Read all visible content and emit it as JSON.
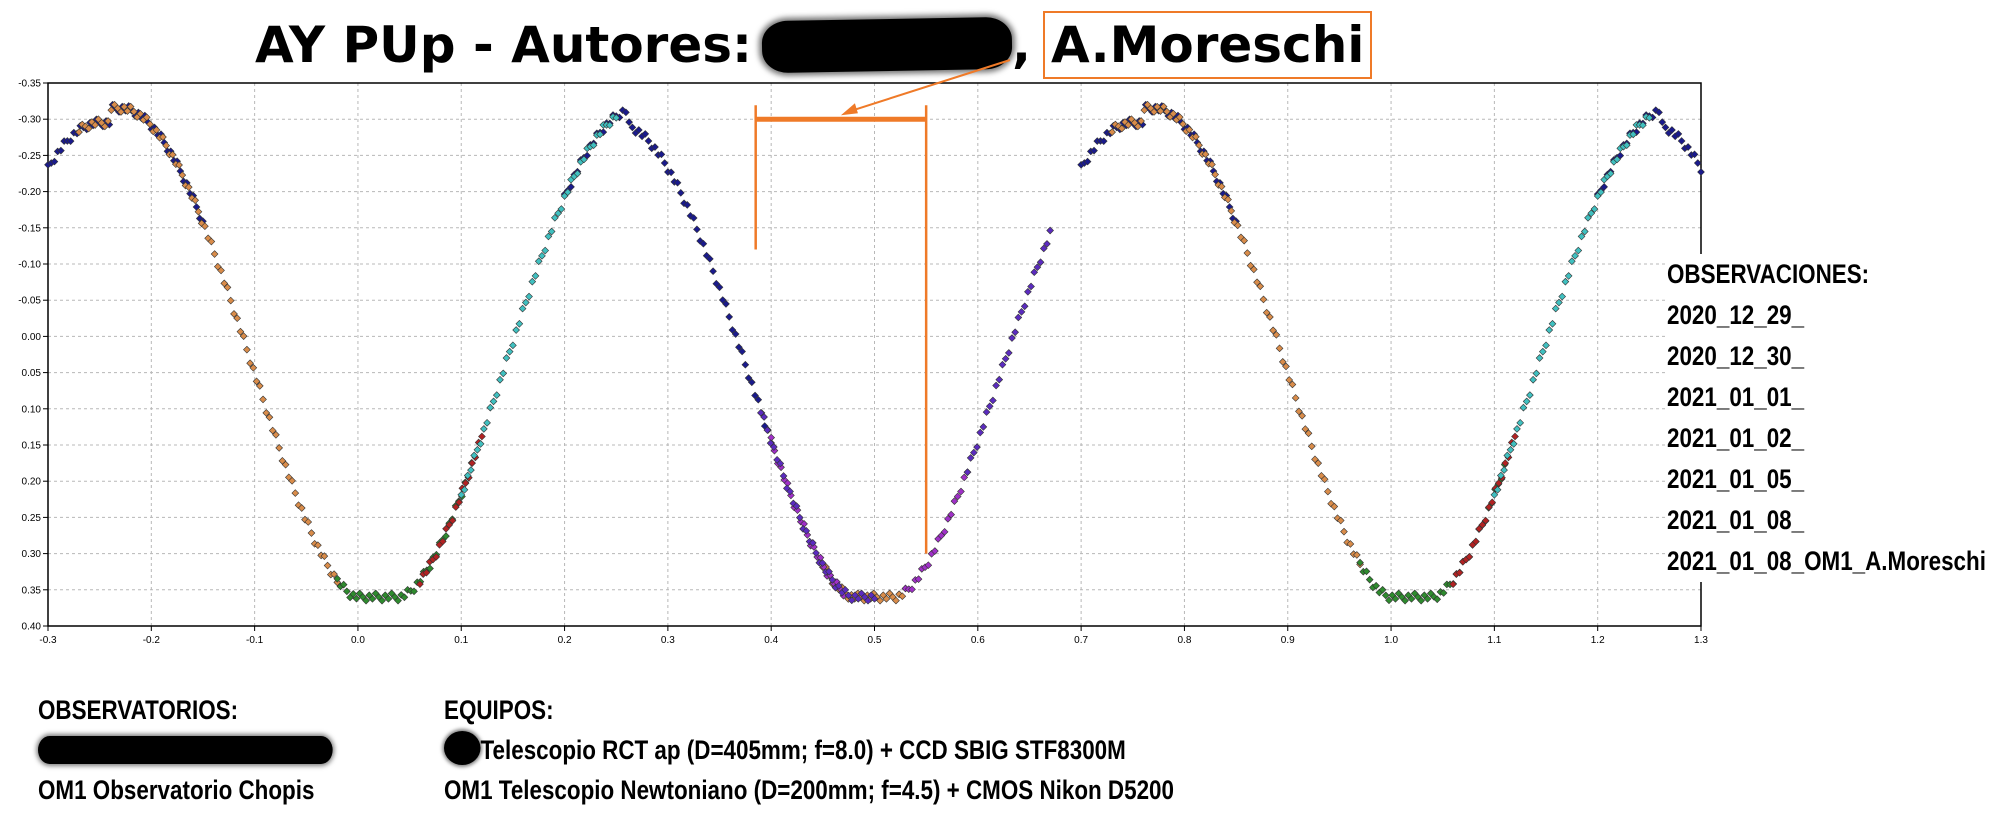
{
  "header": {
    "title_prefix": "AY PUp - Autores:",
    "title_separator": ",",
    "highlighted_author": "A.Moreschi",
    "highlight_color": "#ef7a28"
  },
  "chart_data": {
    "type": "scatter",
    "title": "",
    "xlabel": "",
    "ylabel": "",
    "xlim": [
      -0.3,
      1.3
    ],
    "ylim": [
      -0.35,
      0.4
    ],
    "y_inverted": true,
    "grid": true,
    "x_ticks": [
      "-0.3",
      "-0.2",
      "-0.1",
      "0.0",
      "0.1",
      "0.2",
      "0.3",
      "0.4",
      "0.5",
      "0.6",
      "0.7",
      "0.8",
      "0.9",
      "1.0",
      "1.1",
      "1.2",
      "1.3"
    ],
    "y_ticks": [
      "-0.35",
      "-0.30",
      "-0.25",
      "-0.20",
      "-0.15",
      "-0.10",
      "-0.05",
      "0.00",
      "0.05",
      "0.10",
      "0.15",
      "0.20",
      "0.25",
      "0.30",
      "0.35",
      "0.40"
    ],
    "light_curve_model": {
      "max_magnitude": -0.315,
      "secondary_max_magnitude": -0.295,
      "min_magnitude": 0.36,
      "min_phases": [
        0.02,
        0.5,
        1.02
      ],
      "max_phases": [
        -0.25,
        0.25,
        0.75,
        1.25
      ]
    },
    "series": [
      {
        "color": "#1a1a8c",
        "segments": [
          [
            -0.3,
            -0.15
          ],
          [
            0.2,
            0.4
          ],
          [
            0.7,
            0.85
          ],
          [
            1.2,
            1.3
          ]
        ]
      },
      {
        "color": "#d98c4a",
        "segments": [
          [
            -0.27,
            -0.02
          ],
          [
            0.45,
            0.53
          ],
          [
            0.73,
            0.97
          ]
        ]
      },
      {
        "color": "#2e8b2e",
        "segments": [
          [
            -0.02,
            0.11
          ],
          [
            0.97,
            1.11
          ]
        ]
      },
      {
        "color": "#b22222",
        "segments": [
          [
            0.06,
            0.12
          ],
          [
            1.06,
            1.12
          ]
        ]
      },
      {
        "color": "#40c0c0",
        "segments": [
          [
            0.1,
            0.25
          ],
          [
            1.1,
            1.25
          ]
        ]
      },
      {
        "color": "#a030c8",
        "segments": [
          [
            0.4,
            0.47
          ],
          [
            0.53,
            0.59
          ]
        ]
      },
      {
        "color": "#5b2bbf",
        "segments": [
          [
            0.39,
            0.5
          ],
          [
            0.59,
            0.67
          ]
        ]
      }
    ],
    "annotation": {
      "bracket_x": [
        0.385,
        0.55
      ],
      "bracket_y": -0.3,
      "color": "#ef7a28"
    }
  },
  "observaciones": {
    "heading": "OBSERVACIONES:",
    "entries": [
      "2020_12_29_",
      "2020_12_30_",
      "2021_01_01_",
      "2021_01_02_",
      "2021_01_05_",
      "2021_01_08_",
      "2021_01_08_OM1_A.Moreschi"
    ]
  },
  "observatorios": {
    "heading": "OBSERVATORIOS:",
    "line2": "OM1 Observatorio Chopis"
  },
  "equipos": {
    "heading": "EQUIPOS:",
    "line1": "Telescopio RCT ap (D=405mm; f=8.0) + CCD SBIG STF8300M",
    "line2": "OM1 Telescopio Newtoniano (D=200mm; f=4.5) + CMOS Nikon D5200"
  }
}
